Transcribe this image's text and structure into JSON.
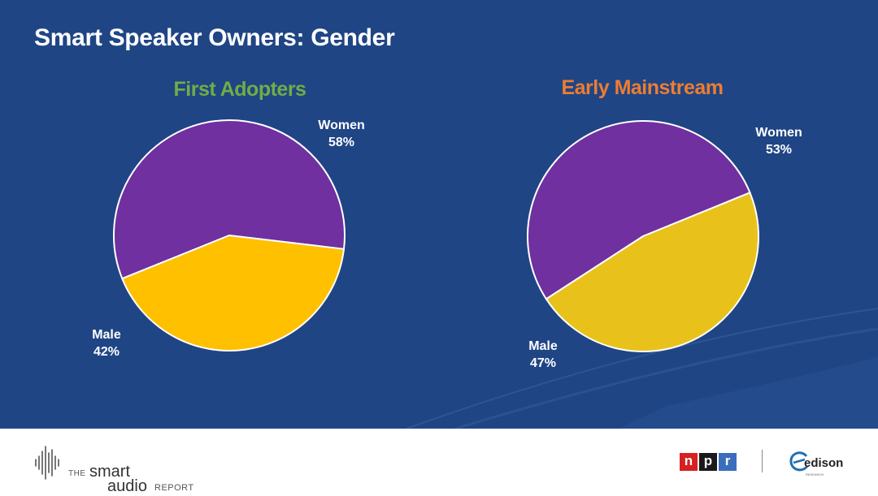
{
  "title": "Smart Speaker Owners: Gender",
  "colors": {
    "background": "#1f4585",
    "women": "#7030a0",
    "male": "#ffc000",
    "male_alt": "#e8c21a",
    "first_adopters_title": "#70ad47",
    "early_mainstream_title": "#ed7d31"
  },
  "chart_data": [
    {
      "type": "pie",
      "title": "First Adopters",
      "slices": [
        {
          "label": "Women",
          "value": 58,
          "value_label": "58%",
          "color": "#7030a0"
        },
        {
          "label": "Male",
          "value": 42,
          "value_label": "42%",
          "color": "#ffc000"
        }
      ]
    },
    {
      "type": "pie",
      "title": "Early Mainstream",
      "slices": [
        {
          "label": "Women",
          "value": 53,
          "value_label": "53%",
          "color": "#7030a0"
        },
        {
          "label": "Male",
          "value": 47,
          "value_label": "47%",
          "color": "#e8c21a"
        }
      ]
    }
  ],
  "footer": {
    "brand_the": "THE",
    "brand_smart": "smart",
    "brand_audio": "audio",
    "brand_report": "REPORT",
    "npr_letters": [
      "n",
      "p",
      "r"
    ],
    "npr_colors": [
      "#d62021",
      "#1a1a1a",
      "#3a6ebd"
    ],
    "edison_name": "edison",
    "edison_sub": "RESEARCH"
  }
}
